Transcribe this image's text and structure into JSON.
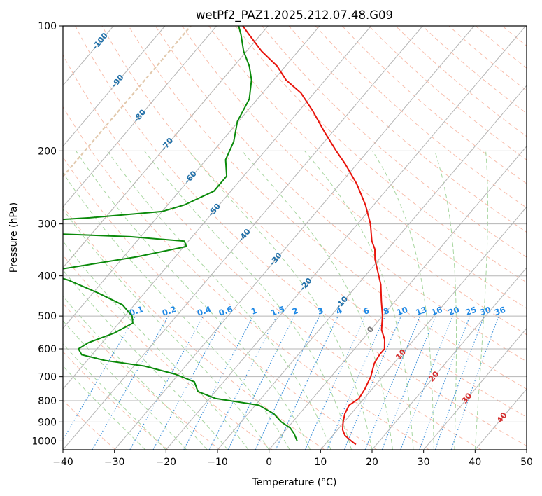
{
  "chart_data": {
    "type": "line",
    "diagram": "skew-T log-p",
    "title": "wetPf2_PAZ1.2025.212.07.48.G09",
    "xlabel": "Temperature (°C)",
    "ylabel": "Pressure (hPa)",
    "xlim": [
      -40,
      50
    ],
    "ylim": [
      1050,
      100
    ],
    "y_scale": "log",
    "grid": true,
    "x_ticks": [
      -40,
      -30,
      -20,
      -10,
      0,
      10,
      20,
      30,
      40,
      50
    ],
    "y_ticks": [
      100,
      200,
      300,
      400,
      500,
      600,
      700,
      800,
      900,
      1000
    ],
    "colors": {
      "temperature": "#e8140c",
      "dewpoint": "#0a8a0a",
      "isotherm": "#b5b5b5",
      "dry_adiabat": "#f6ad96",
      "moist_adiabat": "#a8d6a0",
      "mixing_ratio": "#3a8fd9",
      "special_line": "#e2c9ad",
      "isotherm_label_negative": "#1f6fa8",
      "isotherm_label_zero": "#777777",
      "isotherm_label_positive": "#d42c2c"
    },
    "series": [
      {
        "key": "temperature",
        "points": [
          {
            "p": 1020,
            "t": 16.0
          },
          {
            "p": 1000,
            "t": 14.5
          },
          {
            "p": 970,
            "t": 12.4
          },
          {
            "p": 940,
            "t": 11.0
          },
          {
            "p": 900,
            "t": 9.8
          },
          {
            "p": 860,
            "t": 8.8
          },
          {
            "p": 820,
            "t": 8.2
          },
          {
            "p": 790,
            "t": 9.0
          },
          {
            "p": 750,
            "t": 8.6
          },
          {
            "p": 700,
            "t": 7.7
          },
          {
            "p": 650,
            "t": 6.2
          },
          {
            "p": 620,
            "t": 5.8
          },
          {
            "p": 600,
            "t": 5.8
          },
          {
            "p": 570,
            "t": 4.3
          },
          {
            "p": 540,
            "t": 2.1
          },
          {
            "p": 500,
            "t": 0.0
          },
          {
            "p": 460,
            "t": -2.7
          },
          {
            "p": 420,
            "t": -5.5
          },
          {
            "p": 390,
            "t": -8.3
          },
          {
            "p": 365,
            "t": -10.8
          },
          {
            "p": 345,
            "t": -12.5
          },
          {
            "p": 330,
            "t": -14.4
          },
          {
            "p": 300,
            "t": -17.5
          },
          {
            "p": 270,
            "t": -21.6
          },
          {
            "p": 240,
            "t": -26.8
          },
          {
            "p": 215,
            "t": -32.3
          },
          {
            "p": 200,
            "t": -36.2
          },
          {
            "p": 180,
            "t": -41.6
          },
          {
            "p": 160,
            "t": -47.4
          },
          {
            "p": 145,
            "t": -52.6
          },
          {
            "p": 135,
            "t": -57.6
          },
          {
            "p": 125,
            "t": -61.6
          },
          {
            "p": 115,
            "t": -67.1
          },
          {
            "p": 105,
            "t": -72.2
          },
          {
            "p": 100,
            "t": -74.9
          }
        ]
      },
      {
        "key": "dewpoint",
        "points": [
          {
            "p": 1000,
            "t": 4.0
          },
          {
            "p": 960,
            "t": 2.2
          },
          {
            "p": 930,
            "t": 0.5
          },
          {
            "p": 900,
            "t": -2.2
          },
          {
            "p": 860,
            "t": -5.0
          },
          {
            "p": 820,
            "t": -9.3
          },
          {
            "p": 790,
            "t": -18.8
          },
          {
            "p": 760,
            "t": -23.4
          },
          {
            "p": 720,
            "t": -25.7
          },
          {
            "p": 690,
            "t": -30.7
          },
          {
            "p": 660,
            "t": -38.0
          },
          {
            "p": 640,
            "t": -46.5
          },
          {
            "p": 620,
            "t": -52.0
          },
          {
            "p": 600,
            "t": -53.6
          },
          {
            "p": 580,
            "t": -52.7
          },
          {
            "p": 550,
            "t": -49.3
          },
          {
            "p": 520,
            "t": -47.3
          },
          {
            "p": 500,
            "t": -48.6
          },
          {
            "p": 470,
            "t": -52.3
          },
          {
            "p": 440,
            "t": -59.0
          },
          {
            "p": 410,
            "t": -66.8
          },
          {
            "p": 395,
            "t": -72.0
          },
          {
            "p": 385,
            "t": -70.0
          },
          {
            "p": 360,
            "t": -57.5
          },
          {
            "p": 340,
            "t": -49.5
          },
          {
            "p": 330,
            "t": -50.8
          },
          {
            "p": 322,
            "t": -62.0
          },
          {
            "p": 316,
            "t": -80.0
          },
          {
            "p": 296,
            "t": -85.0
          },
          {
            "p": 290,
            "t": -73.0
          },
          {
            "p": 280,
            "t": -60.0
          },
          {
            "p": 270,
            "t": -56.8
          },
          {
            "p": 250,
            "t": -53.3
          },
          {
            "p": 230,
            "t": -53.3
          },
          {
            "p": 210,
            "t": -56.2
          },
          {
            "p": 190,
            "t": -57.6
          },
          {
            "p": 170,
            "t": -60.2
          },
          {
            "p": 150,
            "t": -61.6
          },
          {
            "p": 135,
            "t": -64.3
          },
          {
            "p": 125,
            "t": -67.0
          },
          {
            "p": 115,
            "t": -70.6
          },
          {
            "p": 105,
            "t": -73.8
          },
          {
            "p": 100,
            "t": -75.7
          }
        ]
      }
    ],
    "isotherm_labels": [
      "-100",
      "-90",
      "-80",
      "-70",
      "-60",
      "-50",
      "-40",
      "-30",
      "-20",
      "-10",
      "0",
      "10",
      "20",
      "30",
      "40"
    ],
    "mixing_ratio_labels": [
      "0.1",
      "0.2",
      "0.4",
      "0.6",
      "1",
      "1.5",
      "2",
      "3",
      "4",
      "6",
      "8",
      "10",
      "13",
      "16",
      "20",
      "25",
      "30",
      "36"
    ]
  }
}
